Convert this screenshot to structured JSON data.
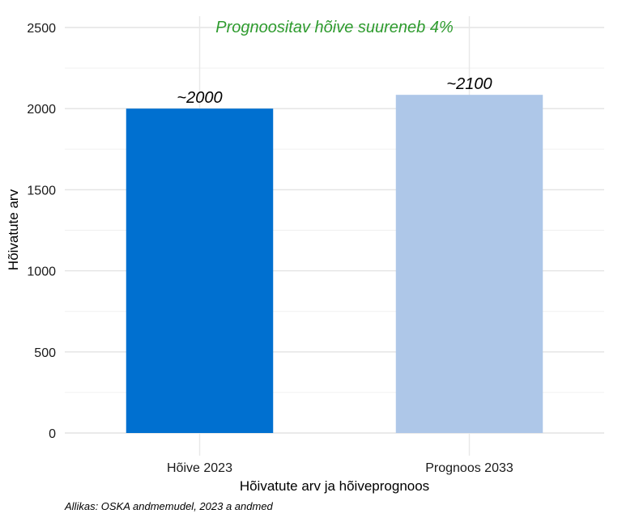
{
  "chart_data": {
    "type": "bar",
    "categories": [
      "Hõive 2023",
      "Prognoos 2033"
    ],
    "values": [
      2000,
      2085
    ],
    "data_labels": [
      "~2000",
      "~2100"
    ],
    "bar_colors": [
      "#0070d0",
      "#aec7e8"
    ],
    "xlabel": "Hõivatute arv ja hõiveprognoos",
    "ylabel": "Hõivatute arv",
    "ylim": [
      0,
      2500
    ],
    "yticks": [
      0,
      500,
      1000,
      1500,
      2000,
      2500
    ],
    "grid": true,
    "annotation": "Prognoositav hõive suureneb 4%",
    "annotation_color": "#2e9b2e",
    "caption": "Allikas: OSKA andmemudel, 2023 a andmed"
  }
}
